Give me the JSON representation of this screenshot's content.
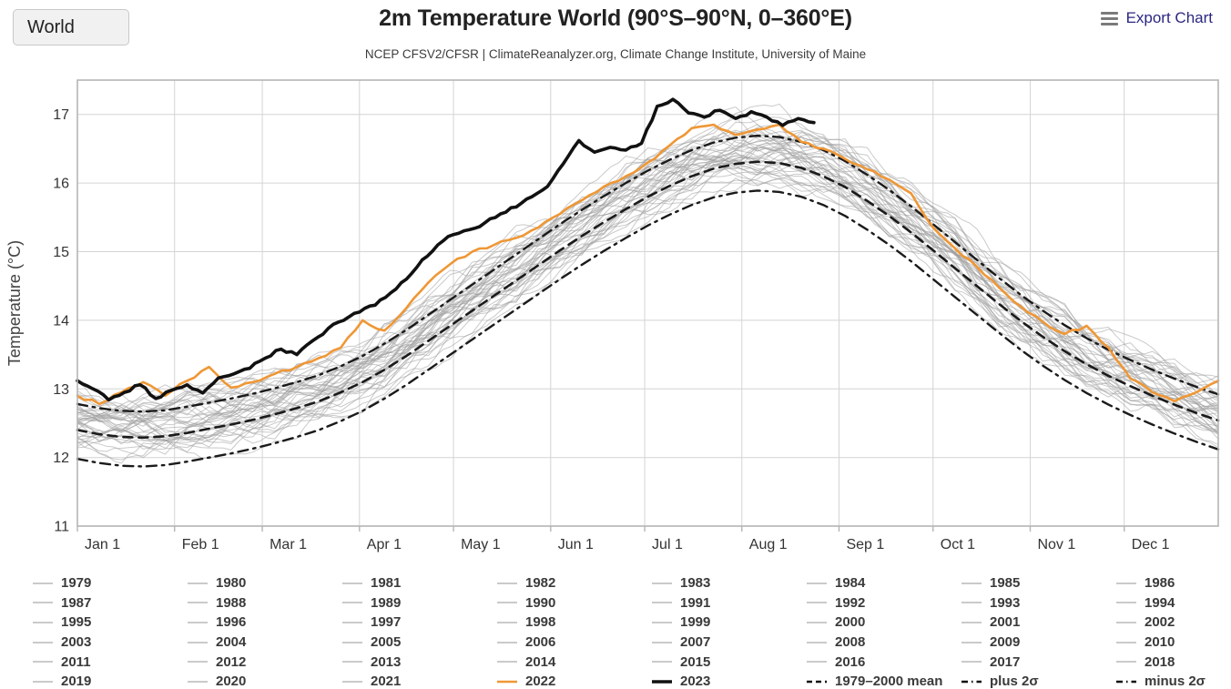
{
  "header": {
    "region_selector": {
      "value": "World"
    },
    "title": "2m Temperature World (90°S–90°N, 0–360°E)",
    "subtitle": "NCEP CFSV2/CFSR | ClimateReanalyzer.org, Climate Change Institute, University of Maine",
    "export_label": "Export Chart"
  },
  "colors": {
    "accent_orange": "#ef9735",
    "line_black": "#111111",
    "gray_year": "#b9b9b9",
    "grid": "#d4d4d4",
    "plot_border": "#b5b5b5",
    "axis_text": "#333333",
    "export_link": "#2b2781"
  },
  "chart_data": {
    "type": "line",
    "title": "2m Temperature World (90°S–90°N, 0–360°E)",
    "subtitle": "NCEP CFSV2/CFSR | ClimateReanalyzer.org, Climate Change Institute, University of Maine",
    "xlabel": "",
    "ylabel": "Temperature (°C)",
    "x_unit": "day_of_year",
    "xlim": [
      1,
      365
    ],
    "ylim": [
      11,
      17.5
    ],
    "grid": true,
    "y_ticks": [
      11,
      12,
      13,
      14,
      15,
      16,
      17
    ],
    "x_ticks": [
      {
        "day": 1,
        "label": "Jan 1"
      },
      {
        "day": 32,
        "label": "Feb 1"
      },
      {
        "day": 60,
        "label": "Mar 1"
      },
      {
        "day": 91,
        "label": "Apr 1"
      },
      {
        "day": 121,
        "label": "May 1"
      },
      {
        "day": 152,
        "label": "Jun 1"
      },
      {
        "day": 182,
        "label": "Jul 1"
      },
      {
        "day": 213,
        "label": "Aug 1"
      },
      {
        "day": 244,
        "label": "Sep 1"
      },
      {
        "day": 274,
        "label": "Oct 1"
      },
      {
        "day": 305,
        "label": "Nov 1"
      },
      {
        "day": 335,
        "label": "Dec 1"
      }
    ],
    "series": [
      {
        "name": "1979-2000 mean",
        "role": "climatology-mean",
        "style": "dashed",
        "color": "#1a1a1a",
        "width": 2.6,
        "day_start": 1,
        "day_step": 7,
        "values": [
          12.4,
          12.34,
          12.3,
          12.29,
          12.31,
          12.36,
          12.42,
          12.48,
          12.55,
          12.63,
          12.72,
          12.82,
          12.95,
          13.1,
          13.28,
          13.48,
          13.7,
          13.92,
          14.14,
          14.36,
          14.58,
          14.8,
          15.02,
          15.23,
          15.43,
          15.62,
          15.8,
          15.96,
          16.1,
          16.21,
          16.28,
          16.31,
          16.29,
          16.22,
          16.1,
          15.94,
          15.74,
          15.52,
          15.28,
          15.02,
          14.76,
          14.5,
          14.24,
          13.99,
          13.76,
          13.55,
          13.36,
          13.19,
          13.04,
          12.9,
          12.77,
          12.65,
          12.54
        ]
      },
      {
        "name": "plus 2σ",
        "role": "plus-2-sigma",
        "style": "dashdot",
        "color": "#1a1a1a",
        "width": 2.4,
        "day_start": 1,
        "day_step": 7,
        "values": [
          12.78,
          12.72,
          12.68,
          12.67,
          12.69,
          12.74,
          12.8,
          12.86,
          12.93,
          13.01,
          13.1,
          13.2,
          13.33,
          13.48,
          13.66,
          13.86,
          14.08,
          14.3,
          14.52,
          14.74,
          14.96,
          15.18,
          15.4,
          15.61,
          15.81,
          16.0,
          16.18,
          16.34,
          16.48,
          16.59,
          16.66,
          16.69,
          16.67,
          16.6,
          16.48,
          16.32,
          16.12,
          15.9,
          15.66,
          15.4,
          15.14,
          14.88,
          14.62,
          14.37,
          14.14,
          13.93,
          13.74,
          13.57,
          13.42,
          13.28,
          13.15,
          13.03,
          12.92
        ]
      },
      {
        "name": "minus 2σ",
        "role": "minus-2-sigma",
        "style": "dashdot",
        "color": "#1a1a1a",
        "width": 2.4,
        "day_start": 1,
        "day_step": 7,
        "values": [
          11.98,
          11.92,
          11.88,
          11.87,
          11.89,
          11.94,
          12.0,
          12.06,
          12.13,
          12.21,
          12.3,
          12.4,
          12.53,
          12.68,
          12.86,
          13.06,
          13.28,
          13.5,
          13.72,
          13.94,
          14.16,
          14.38,
          14.6,
          14.81,
          15.01,
          15.2,
          15.38,
          15.54,
          15.68,
          15.79,
          15.86,
          15.89,
          15.87,
          15.8,
          15.68,
          15.52,
          15.32,
          15.1,
          14.86,
          14.6,
          14.34,
          14.08,
          13.82,
          13.57,
          13.34,
          13.13,
          12.94,
          12.77,
          12.62,
          12.48,
          12.35,
          12.23,
          12.12
        ]
      },
      {
        "name": "2022",
        "role": "year-2022",
        "style": "solid",
        "color": "#ef9735",
        "width": 2.6,
        "day_start": 1,
        "day_step": 7,
        "values": [
          12.9,
          12.78,
          12.95,
          13.1,
          12.9,
          13.12,
          13.32,
          13.02,
          13.1,
          13.22,
          13.32,
          13.45,
          13.6,
          14.0,
          13.85,
          14.18,
          14.55,
          14.82,
          15.0,
          15.1,
          15.2,
          15.35,
          15.55,
          15.75,
          15.95,
          16.1,
          16.3,
          16.55,
          16.8,
          16.85,
          16.7,
          16.78,
          16.85,
          16.6,
          16.5,
          16.35,
          16.2,
          16.05,
          15.85,
          15.35,
          15.05,
          14.78,
          14.48,
          14.2,
          13.98,
          13.8,
          13.92,
          13.6,
          13.15,
          12.95,
          12.82,
          12.95,
          13.12
        ]
      },
      {
        "name": "2023",
        "role": "year-2023",
        "style": "solid",
        "color": "#111111",
        "width": 3.6,
        "day_start": 1,
        "day_step": 5,
        "values": [
          13.12,
          13.0,
          12.84,
          12.95,
          13.06,
          12.86,
          12.98,
          13.06,
          12.94,
          13.16,
          13.22,
          13.3,
          13.45,
          13.58,
          13.5,
          13.7,
          13.88,
          14.0,
          14.12,
          14.22,
          14.4,
          14.6,
          14.88,
          15.1,
          15.25,
          15.32,
          15.42,
          15.55,
          15.65,
          15.8,
          15.95,
          16.28,
          16.62,
          16.45,
          16.52,
          16.48,
          16.58,
          17.12,
          17.22,
          17.02,
          16.96,
          17.06,
          16.94,
          17.04,
          16.96,
          16.84,
          16.94,
          16.88
        ]
      }
    ],
    "background_years": {
      "from": 1979,
      "to": 2021,
      "color": "#9e9e9e",
      "opacity": 0.55,
      "width": 1,
      "trend_base_year": 1990,
      "trend_per_year": 0.017,
      "noise": {
        "rho": 0.55,
        "amp": 0.22,
        "jitter": 0.025
      }
    },
    "legend": {
      "columns": 8,
      "items": [
        {
          "label": "1979",
          "type": "year"
        },
        {
          "label": "1980",
          "type": "year"
        },
        {
          "label": "1981",
          "type": "year"
        },
        {
          "label": "1982",
          "type": "year"
        },
        {
          "label": "1983",
          "type": "year"
        },
        {
          "label": "1984",
          "type": "year"
        },
        {
          "label": "1985",
          "type": "year"
        },
        {
          "label": "1986",
          "type": "year"
        },
        {
          "label": "1987",
          "type": "year"
        },
        {
          "label": "1988",
          "type": "year"
        },
        {
          "label": "1989",
          "type": "year"
        },
        {
          "label": "1990",
          "type": "year"
        },
        {
          "label": "1991",
          "type": "year"
        },
        {
          "label": "1992",
          "type": "year"
        },
        {
          "label": "1993",
          "type": "year"
        },
        {
          "label": "1994",
          "type": "year"
        },
        {
          "label": "1995",
          "type": "year"
        },
        {
          "label": "1996",
          "type": "year"
        },
        {
          "label": "1997",
          "type": "year"
        },
        {
          "label": "1998",
          "type": "year"
        },
        {
          "label": "1999",
          "type": "year"
        },
        {
          "label": "2000",
          "type": "year"
        },
        {
          "label": "2001",
          "type": "year"
        },
        {
          "label": "2002",
          "type": "year"
        },
        {
          "label": "2003",
          "type": "year"
        },
        {
          "label": "2004",
          "type": "year"
        },
        {
          "label": "2005",
          "type": "year"
        },
        {
          "label": "2006",
          "type": "year"
        },
        {
          "label": "2007",
          "type": "year"
        },
        {
          "label": "2008",
          "type": "year"
        },
        {
          "label": "2009",
          "type": "year"
        },
        {
          "label": "2010",
          "type": "year"
        },
        {
          "label": "2011",
          "type": "year"
        },
        {
          "label": "2012",
          "type": "year"
        },
        {
          "label": "2013",
          "type": "year"
        },
        {
          "label": "2014",
          "type": "year"
        },
        {
          "label": "2015",
          "type": "year"
        },
        {
          "label": "2016",
          "type": "year"
        },
        {
          "label": "2017",
          "type": "year"
        },
        {
          "label": "2018",
          "type": "year"
        },
        {
          "label": "2019",
          "type": "year"
        },
        {
          "label": "2020",
          "type": "year"
        },
        {
          "label": "2021",
          "type": "year"
        },
        {
          "label": "2022",
          "type": "y2022"
        },
        {
          "label": "2023",
          "type": "y2023"
        },
        {
          "label": "1979–2000 mean",
          "type": "mean"
        },
        {
          "label": "plus 2σ",
          "type": "sigma"
        },
        {
          "label": "minus 2σ",
          "type": "sigma"
        }
      ]
    }
  }
}
